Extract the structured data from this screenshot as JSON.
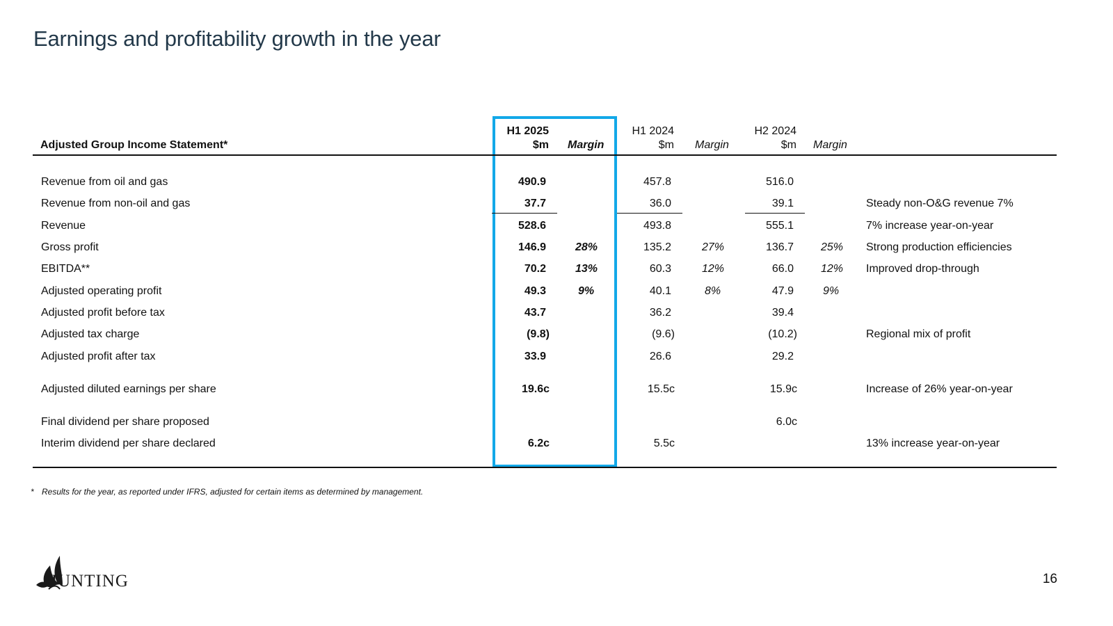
{
  "title": "Earnings and profitability growth in the year",
  "table": {
    "heading": "Adjusted Group Income Statement*",
    "columns": {
      "h1_2025_period": "H1 2025",
      "h1_2025_unit": "$m",
      "h1_2025_margin": "Margin",
      "h1_2024_period": "H1 2024",
      "h1_2024_unit": "$m",
      "h1_2024_margin": "Margin",
      "h2_2024_period": "H2 2024",
      "h2_2024_unit": "$m",
      "h2_2024_margin": "Margin"
    },
    "rows": [
      {
        "label": "Revenue from oil and gas",
        "h1_2025": "490.9",
        "m1": "",
        "h1_2024": "457.8",
        "m2": "",
        "h2_2024": "516.0",
        "m3": "",
        "comment": ""
      },
      {
        "label": "Revenue from non-oil and gas",
        "h1_2025": "37.7",
        "m1": "",
        "h1_2024": "36.0",
        "m2": "",
        "h2_2024": "39.1",
        "m3": "",
        "comment": "Steady non-O&G revenue 7%"
      },
      {
        "label": "Revenue",
        "h1_2025": "528.6",
        "m1": "",
        "h1_2024": "493.8",
        "m2": "",
        "h2_2024": "555.1",
        "m3": "",
        "comment": "7% increase year-on-year"
      },
      {
        "label": "Gross profit",
        "h1_2025": "146.9",
        "m1": "28%",
        "h1_2024": "135.2",
        "m2": "27%",
        "h2_2024": "136.7",
        "m3": "25%",
        "comment": "Strong production efficiencies"
      },
      {
        "label": "EBITDA**",
        "h1_2025": "70.2",
        "m1": "13%",
        "h1_2024": "60.3",
        "m2": "12%",
        "h2_2024": "66.0",
        "m3": "12%",
        "comment": "Improved drop-through"
      },
      {
        "label": "Adjusted operating profit",
        "h1_2025": "49.3",
        "m1": "9%",
        "h1_2024": "40.1",
        "m2": "8%",
        "h2_2024": "47.9",
        "m3": "9%",
        "comment": ""
      },
      {
        "label": "Adjusted profit before tax",
        "h1_2025": "43.7",
        "m1": "",
        "h1_2024": "36.2",
        "m2": "",
        "h2_2024": "39.4",
        "m3": "",
        "comment": ""
      },
      {
        "label": "Adjusted tax charge",
        "h1_2025": "(9.8)",
        "m1": "",
        "h1_2024": "(9.6)",
        "m2": "",
        "h2_2024": "(10.2)",
        "m3": "",
        "comment": "Regional mix of profit"
      },
      {
        "label": "Adjusted profit after tax",
        "h1_2025": "33.9",
        "m1": "",
        "h1_2024": "26.6",
        "m2": "",
        "h2_2024": "29.2",
        "m3": "",
        "comment": ""
      },
      {
        "label": "Adjusted diluted earnings per share",
        "h1_2025": "19.6c",
        "m1": "",
        "h1_2024": "15.5c",
        "m2": "",
        "h2_2024": "15.9c",
        "m3": "",
        "comment": "Increase of 26% year-on-year"
      },
      {
        "label": "Final dividend per share proposed",
        "h1_2025": "",
        "m1": "",
        "h1_2024": "",
        "m2": "",
        "h2_2024": "6.0c",
        "m3": "",
        "comment": ""
      },
      {
        "label": "Interim dividend per share declared",
        "h1_2025": "6.2c",
        "m1": "",
        "h1_2024": "5.5c",
        "m2": "",
        "h2_2024": "",
        "m3": "",
        "comment": "13% increase year-on-year"
      }
    ]
  },
  "footnote": {
    "mark": "*",
    "text": "Results for the year, as reported under IFRS, adjusted for certain items as determined by management."
  },
  "logo": {
    "text": "HUNTING",
    "icon": "winged-mark-icon"
  },
  "page_number": "16",
  "colors": {
    "title": "#23394a",
    "highlight": "#12a8e8",
    "text": "#111111"
  }
}
